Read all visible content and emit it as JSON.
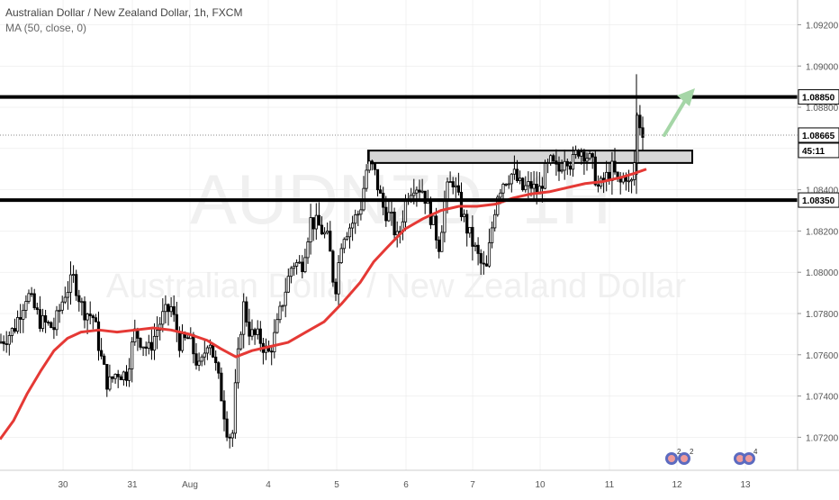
{
  "header": {
    "title": "Australian Dollar / New Zealand Dollar, 1h, FXCM",
    "indicator": "MA (50, close, 0)"
  },
  "watermark": {
    "symbol": "AUDNZD, 1H",
    "name": "Australian Dollar / New Zealand Dollar"
  },
  "colors": {
    "bull": "#ffffff",
    "bear": "#000000",
    "wick": "#000000",
    "ma": "#e53935",
    "level": "#000000",
    "zone_fill": "#d6d6d6",
    "arrow": "#a5d6a7",
    "axis_text": "#555555",
    "grid": "#e6e6e6"
  },
  "y_axis_ticks": [
    "1.09200",
    "1.09000",
    "1.08800",
    "1.08600",
    "1.08400",
    "1.08200",
    "1.08000",
    "1.07800",
    "1.07600",
    "1.07400",
    "1.07200"
  ],
  "x_axis_ticks": [
    "30",
    "31",
    "Aug",
    "4",
    "5",
    "6",
    "7",
    "10",
    "11",
    "12",
    "13"
  ],
  "price_labels": {
    "resistance": "1.08850",
    "current": "1.08665",
    "countdown": "45:11",
    "support": "1.08350"
  },
  "events": {
    "first_count": "2",
    "second_count": "2",
    "third_count": "4"
  },
  "chart_data": {
    "type": "candlestick",
    "title": "Australian Dollar / New Zealand Dollar, 1h, FXCM",
    "ylim": [
      1.0704,
      1.0932
    ],
    "x_categories": [
      "30",
      "31",
      "Aug",
      "4",
      "5",
      "6",
      "7",
      "10",
      "11",
      "12",
      "13"
    ],
    "horizontal_levels": [
      1.0885,
      1.0835
    ],
    "zone": {
      "low": 1.0853,
      "high": 1.0859,
      "from": "5",
      "to": "11"
    },
    "current_price": 1.08665,
    "ma_period": 50,
    "ma_points": [
      [
        0,
        1.0719
      ],
      [
        15,
        1.0728
      ],
      [
        30,
        1.0741
      ],
      [
        45,
        1.0752
      ],
      [
        60,
        1.0762
      ],
      [
        75,
        1.0768
      ],
      [
        90,
        1.0771
      ],
      [
        110,
        1.0772
      ],
      [
        130,
        1.0771
      ],
      [
        150,
        1.0772
      ],
      [
        170,
        1.0773
      ],
      [
        190,
        1.0772
      ],
      [
        210,
        1.077
      ],
      [
        230,
        1.0767
      ],
      [
        245,
        1.0763
      ],
      [
        262,
        1.0759
      ],
      [
        280,
        1.0762
      ],
      [
        300,
        1.0764
      ],
      [
        320,
        1.0766
      ],
      [
        340,
        1.0771
      ],
      [
        360,
        1.0776
      ],
      [
        380,
        1.0785
      ],
      [
        400,
        1.0795
      ],
      [
        415,
        1.0805
      ],
      [
        430,
        1.0812
      ],
      [
        450,
        1.0821
      ],
      [
        470,
        1.0826
      ],
      [
        490,
        1.083
      ],
      [
        510,
        1.0832
      ],
      [
        530,
        1.0832
      ],
      [
        550,
        1.0833
      ],
      [
        570,
        1.0836
      ],
      [
        590,
        1.0838
      ],
      [
        610,
        1.0839
      ],
      [
        630,
        1.0841
      ],
      [
        650,
        1.0843
      ],
      [
        670,
        1.0844
      ],
      [
        690,
        1.0846
      ],
      [
        705,
        1.0848
      ],
      [
        718,
        1.085
      ]
    ],
    "candle_anchors": [
      [
        0,
        1.0766
      ],
      [
        15,
        1.0772
      ],
      [
        30,
        1.079
      ],
      [
        45,
        1.0776
      ],
      [
        60,
        1.0773
      ],
      [
        72,
        1.079
      ],
      [
        82,
        1.0797
      ],
      [
        92,
        1.0782
      ],
      [
        104,
        1.0778
      ],
      [
        113,
        1.0757
      ],
      [
        120,
        1.0745
      ],
      [
        130,
        1.0752
      ],
      [
        140,
        1.075
      ],
      [
        150,
        1.0771
      ],
      [
        165,
        1.0762
      ],
      [
        180,
        1.0778
      ],
      [
        190,
        1.0783
      ],
      [
        200,
        1.0765
      ],
      [
        210,
        1.0768
      ],
      [
        222,
        1.0752
      ],
      [
        232,
        1.077
      ],
      [
        244,
        1.0745
      ],
      [
        253,
        1.0722
      ],
      [
        258,
        1.072
      ],
      [
        262,
        1.0747
      ],
      [
        270,
        1.0785
      ],
      [
        278,
        1.077
      ],
      [
        288,
        1.0768
      ],
      [
        298,
        1.076
      ],
      [
        306,
        1.077
      ],
      [
        315,
        1.0788
      ],
      [
        325,
        1.0805
      ],
      [
        335,
        1.0803
      ],
      [
        345,
        1.0825
      ],
      [
        355,
        1.0822
      ],
      [
        365,
        1.0815
      ],
      [
        372,
        1.079
      ],
      [
        380,
        1.0818
      ],
      [
        390,
        1.0823
      ],
      [
        400,
        1.083
      ],
      [
        408,
        1.0852
      ],
      [
        415,
        1.085
      ],
      [
        425,
        1.0832
      ],
      [
        435,
        1.0825
      ],
      [
        442,
        1.0815
      ],
      [
        452,
        1.0838
      ],
      [
        460,
        1.0843
      ],
      [
        470,
        1.084
      ],
      [
        480,
        1.0825
      ],
      [
        488,
        1.0813
      ],
      [
        495,
        1.0838
      ],
      [
        503,
        1.0845
      ],
      [
        511,
        1.0832
      ],
      [
        518,
        1.0822
      ],
      [
        526,
        1.0813
      ],
      [
        534,
        1.0804
      ],
      [
        540,
        1.08
      ],
      [
        546,
        1.082
      ],
      [
        552,
        1.0838
      ],
      [
        560,
        1.0845
      ],
      [
        570,
        1.0848
      ],
      [
        580,
        1.084
      ],
      [
        590,
        1.0842
      ],
      [
        598,
        1.0838
      ],
      [
        605,
        1.0848
      ],
      [
        612,
        1.0853
      ],
      [
        620,
        1.0848
      ],
      [
        628,
        1.0858
      ],
      [
        635,
        1.0852
      ],
      [
        643,
        1.086
      ],
      [
        650,
        1.0858
      ],
      [
        658,
        1.0852
      ],
      [
        665,
        1.084
      ],
      [
        672,
        1.0845
      ],
      [
        680,
        1.085
      ],
      [
        688,
        1.0842
      ],
      [
        695,
        1.0848
      ],
      [
        700,
        1.084
      ],
      [
        704,
        1.0848
      ],
      [
        708,
        1.0877
      ],
      [
        712,
        1.087
      ],
      [
        716,
        1.0868
      ]
    ]
  }
}
